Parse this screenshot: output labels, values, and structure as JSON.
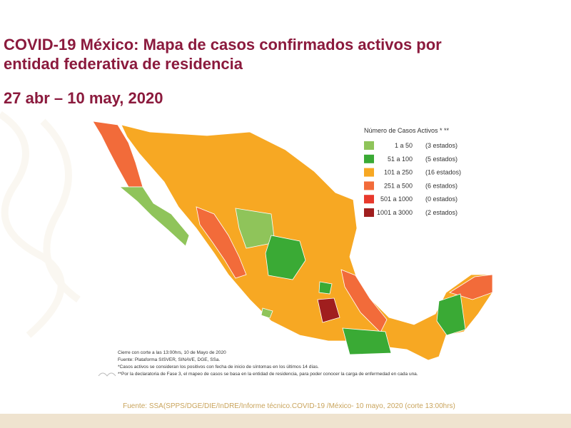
{
  "header": {
    "title_line1": "COVID-19 México: Mapa de casos confirmados activos por",
    "title_line2": "entidad federativa de residencia",
    "date": "27 abr – 10 may, 2020"
  },
  "legend": {
    "title": "Número de Casos Activos * **",
    "items": [
      {
        "range": "1 a 50",
        "count": "(3 estados)",
        "color": "#8fc45a"
      },
      {
        "range": "51 a 100",
        "count": "(5 estados)",
        "color": "#3aaa35"
      },
      {
        "range": "101 a 250",
        "count": "(16 estados)",
        "color": "#f7a823"
      },
      {
        "range": "251 a 500",
        "count": "(6 estados)",
        "color": "#f26b3a"
      },
      {
        "range": "501 a 1000",
        "count": "(0 estados)",
        "color": "#e8392c"
      },
      {
        "range": "1001 a 3000",
        "count": "(2 estados)",
        "color": "#a01e1e"
      }
    ]
  },
  "notes": [
    "Cierre con corte a las 13:00hrs, 10 de Mayo de 2020",
    "Fuente: Plataforma SISVER, SINAVE, DGE, SSa.",
    "*Casos activos se consideran los positivos con fecha de inicio de síntomas en los últimos 14 días.",
    "**Por la declaratoria de Fase 3, el mapeo de casos se basa en la entidad de residencia, para poder conocer la carga de enfermedad en cada una."
  ],
  "source": "Fuente: SSA(SPPS/DGE/DIE/InDRE/Informe técnico.COVID-19 /México- 10 mayo, 2020 (corte 13:00hrs)"
}
